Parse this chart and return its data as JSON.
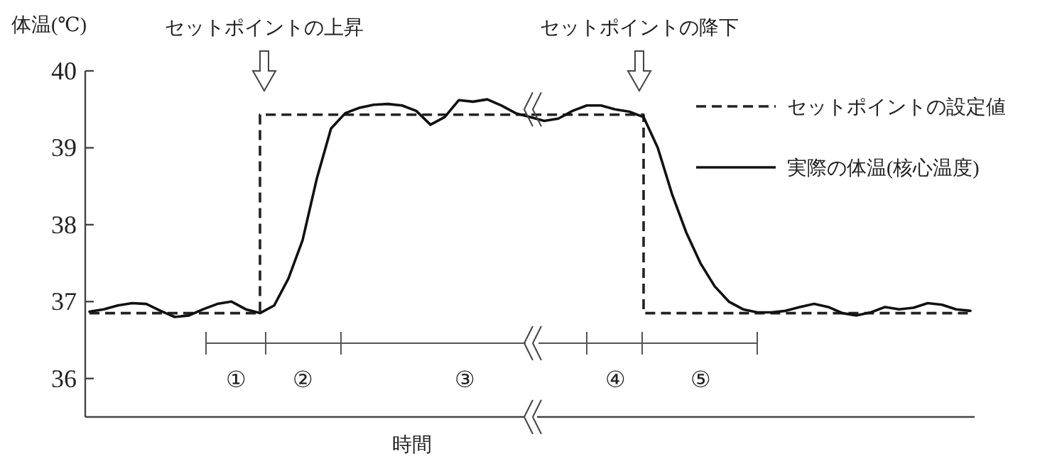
{
  "chart_data": {
    "type": "line",
    "ylabel": "体温(℃)",
    "xlabel": "時間",
    "categories": [
      null,
      null,
      null,
      null,
      null,
      null,
      null,
      null,
      null,
      null,
      null,
      null,
      null,
      null,
      null,
      null,
      null,
      null,
      null,
      null,
      null,
      null,
      null,
      null,
      null,
      null,
      null,
      null,
      null,
      null,
      null,
      null,
      null,
      null,
      null,
      null,
      null,
      null,
      null,
      null,
      null,
      null,
      null,
      null,
      null,
      null,
      null,
      null,
      null,
      null,
      null,
      null,
      null,
      null,
      null,
      null,
      null,
      null,
      null,
      null,
      null,
      null,
      null
    ],
    "series": [
      {
        "name": "セットポイントの設定値",
        "type": "step",
        "line_style": "dashed",
        "color": "#222222",
        "values": [
          36.85,
          36.85,
          36.85,
          36.85,
          36.85,
          36.85,
          36.85,
          36.85,
          36.85,
          36.85,
          36.85,
          36.85,
          39.43,
          39.43,
          39.43,
          39.43,
          39.43,
          39.43,
          39.43,
          39.43,
          39.43,
          39.43,
          39.43,
          39.43,
          39.43,
          39.43,
          39.43,
          39.43,
          39.43,
          39.43,
          39.43,
          39.43,
          39.43,
          39.43,
          39.43,
          39.43,
          39.43,
          39.43,
          39.43,
          36.85,
          36.85,
          36.85,
          36.85,
          36.85,
          36.85,
          36.85,
          36.85,
          36.85,
          36.85,
          36.85,
          36.85,
          36.85,
          36.85,
          36.85,
          36.85,
          36.85,
          36.85,
          36.85,
          36.85,
          36.85,
          36.85,
          36.85,
          36.85
        ]
      },
      {
        "name": "実際の体温(核心温度)",
        "type": "line",
        "line_style": "solid",
        "color": "#111111",
        "values": [
          36.87,
          36.9,
          36.95,
          36.98,
          36.97,
          36.88,
          36.8,
          36.82,
          36.9,
          36.97,
          37.0,
          36.9,
          36.85,
          36.95,
          37.3,
          37.8,
          38.6,
          39.25,
          39.45,
          39.52,
          39.56,
          39.57,
          39.55,
          39.48,
          39.3,
          39.4,
          39.62,
          39.6,
          39.63,
          39.55,
          39.45,
          39.4,
          39.35,
          39.38,
          39.48,
          39.55,
          39.55,
          39.5,
          39.47,
          39.4,
          39.0,
          38.4,
          37.9,
          37.5,
          37.2,
          37.0,
          36.9,
          36.86,
          36.86,
          36.88,
          36.93,
          36.97,
          36.93,
          36.85,
          36.82,
          36.86,
          36.93,
          36.9,
          36.92,
          36.98,
          36.96,
          36.9,
          36.88
        ]
      }
    ],
    "ylim": [
      35.5,
      40
    ],
    "yticks": [
      36,
      37,
      38,
      39,
      40
    ],
    "grid": false,
    "legend": "right",
    "marker": "none",
    "annotations": [
      "セットポイントの上昇",
      "セットポイントの降下",
      "①",
      "②",
      "③",
      "④",
      "⑤"
    ]
  }
}
